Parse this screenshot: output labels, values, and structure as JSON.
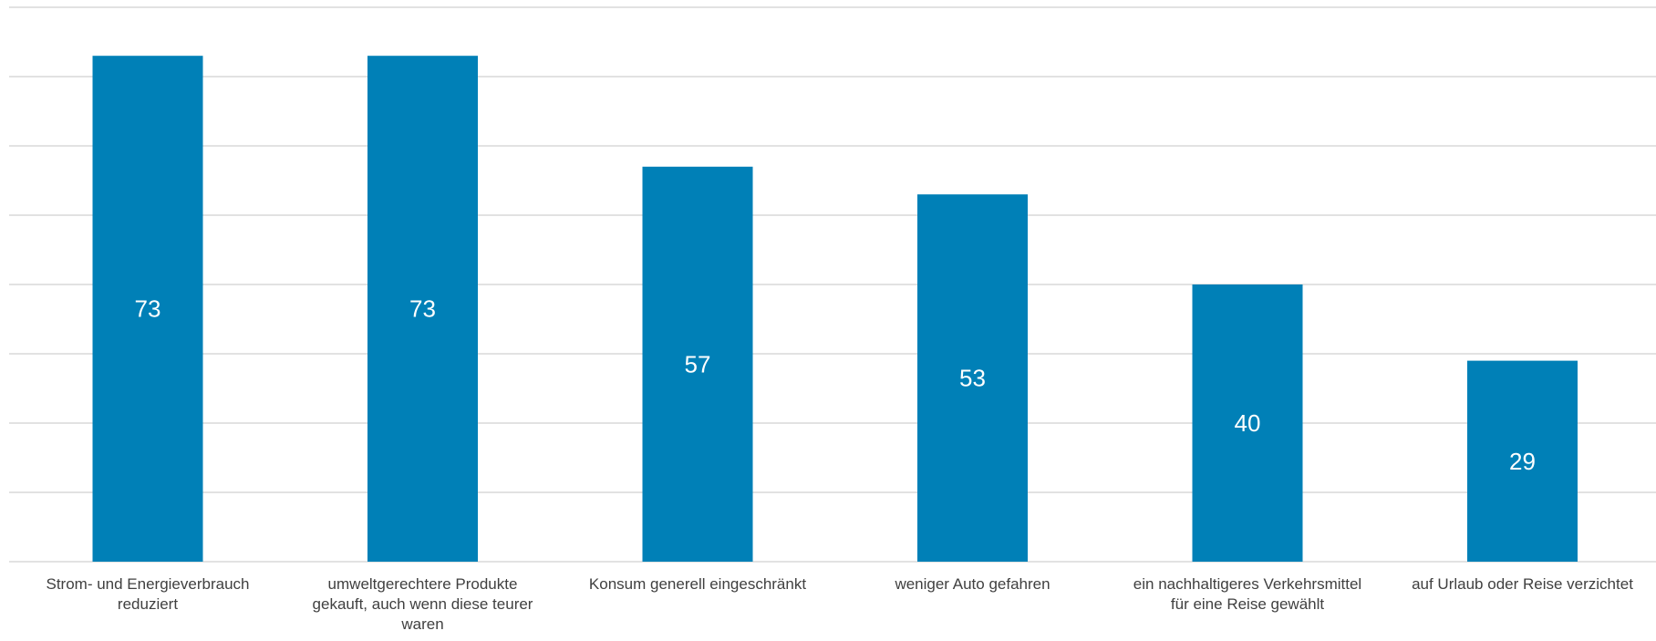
{
  "chart_data": {
    "type": "bar",
    "categories": [
      "Strom- und Energieverbrauch reduziert",
      "umweltgerechtere Produkte gekauft, auch wenn diese teurer waren",
      "Konsum generell eingeschränkt",
      "weniger Auto gefahren",
      "ein nachhaltigeres Verkehrsmittel für eine Reise gewählt",
      "auf Urlaub oder Reise verzichtet"
    ],
    "values": [
      73,
      73,
      57,
      53,
      40,
      29
    ],
    "data_labels": [
      "73",
      "73",
      "57",
      "53",
      "40",
      "29"
    ],
    "title": "",
    "xlabel": "",
    "ylabel": "",
    "ylim": [
      0,
      80
    ],
    "grid": true,
    "legend": "none",
    "bar_color": "#0080B7",
    "label_color": "#FFFFFF"
  }
}
